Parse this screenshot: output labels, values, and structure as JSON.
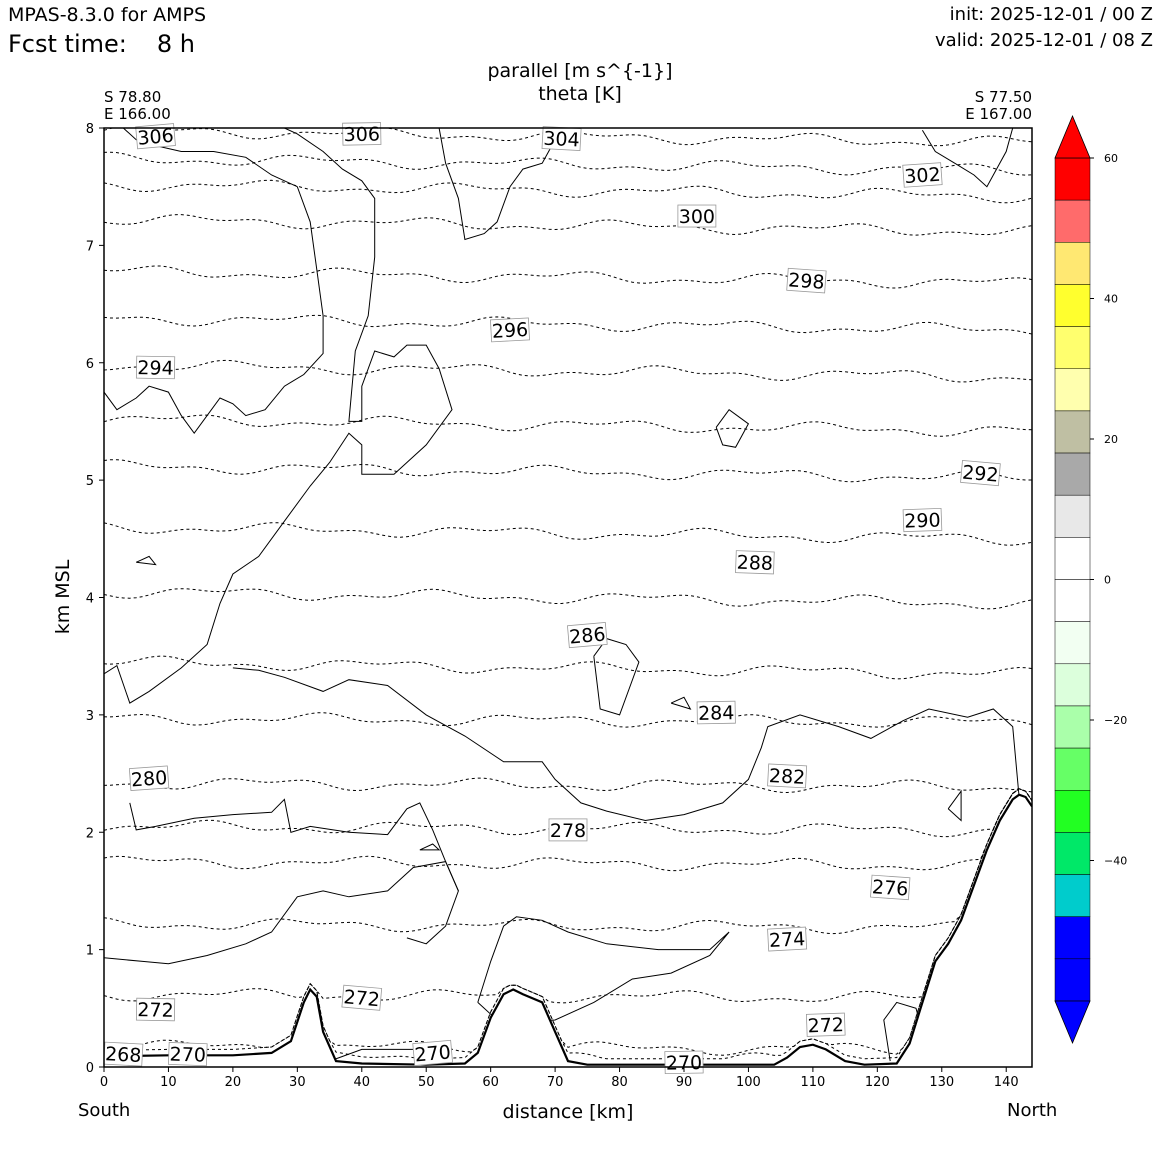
{
  "header": {
    "model": "MPAS-8.3.0 for AMPS",
    "fcst_label": "Fcst time:",
    "fcst_value": "8 h",
    "init": "init: 2025-12-01 / 00 Z",
    "valid": "valid: 2025-12-01 / 08 Z"
  },
  "titles": {
    "line1": "parallel [m s^{-1}]",
    "line2": "theta [K]"
  },
  "corners": {
    "left_lat": "S 78.80",
    "left_lon": "E 166.00",
    "right_lat": "S 77.50",
    "right_lon": "E 167.00"
  },
  "ends": {
    "south": "South",
    "north": "North"
  },
  "chart_data": {
    "type": "cross-section contour",
    "xlabel": "distance [km]",
    "ylabel": "km MSL",
    "xlim": [
      0,
      144
    ],
    "ylim": [
      0,
      8
    ],
    "xticks": [
      0,
      10,
      20,
      30,
      40,
      50,
      60,
      70,
      80,
      90,
      100,
      110,
      120,
      130,
      140
    ],
    "yticks": [
      0,
      1,
      2,
      3,
      4,
      5,
      6,
      7,
      8
    ],
    "theta_contours": [
      {
        "level": 306,
        "height_km": 7.98
      },
      {
        "level": 304,
        "height_km": 7.74
      },
      {
        "level": 302,
        "height_km": 7.52
      },
      {
        "level": 300,
        "height_km": 7.22
      },
      {
        "level": 298,
        "height_km": 6.78
      },
      {
        "level": 296,
        "height_km": 6.38
      },
      {
        "level": 294,
        "height_km": 5.98
      },
      {
        "level": 292,
        "height_km": 5.52
      },
      {
        "level": 290,
        "height_km": 5.12
      },
      {
        "level": 288,
        "height_km": 4.6
      },
      {
        "level": 286,
        "height_km": 4.05
      },
      {
        "level": 284,
        "height_km": 3.45
      },
      {
        "level": 282,
        "height_km": 2.97
      },
      {
        "level": 280,
        "height_km": 2.42
      },
      {
        "level": 278,
        "height_km": 2.05
      },
      {
        "level": 276,
        "height_km": 1.75
      },
      {
        "level": 274,
        "height_km": 1.22
      },
      {
        "level": 272,
        "height_km": 0.62
      },
      {
        "level": 270,
        "height_km": 0.18
      },
      {
        "level": 268,
        "height_km": 0.09
      }
    ],
    "contour_labels": [
      {
        "text": "306",
        "x": 8,
        "y": 7.93
      },
      {
        "text": "306",
        "x": 40,
        "y": 7.95
      },
      {
        "text": "304",
        "x": 71,
        "y": 7.91
      },
      {
        "text": "302",
        "x": 127,
        "y": 7.6
      },
      {
        "text": "300",
        "x": 92,
        "y": 7.25
      },
      {
        "text": "298",
        "x": 109,
        "y": 6.7
      },
      {
        "text": "296",
        "x": 63,
        "y": 6.28
      },
      {
        "text": "294",
        "x": 8,
        "y": 5.96
      },
      {
        "text": "292",
        "x": 136,
        "y": 5.06
      },
      {
        "text": "290",
        "x": 127,
        "y": 4.66
      },
      {
        "text": "288",
        "x": 101,
        "y": 4.3
      },
      {
        "text": "286",
        "x": 75,
        "y": 3.68
      },
      {
        "text": "284",
        "x": 95,
        "y": 3.02
      },
      {
        "text": "282",
        "x": 106,
        "y": 2.48
      },
      {
        "text": "280",
        "x": 7,
        "y": 2.46
      },
      {
        "text": "278",
        "x": 72,
        "y": 2.02
      },
      {
        "text": "276",
        "x": 122,
        "y": 1.53
      },
      {
        "text": "274",
        "x": 106,
        "y": 1.09
      },
      {
        "text": "272",
        "x": 8,
        "y": 0.49
      },
      {
        "text": "272",
        "x": 40,
        "y": 0.59
      },
      {
        "text": "272",
        "x": 112,
        "y": 0.36
      },
      {
        "text": "270",
        "x": 13,
        "y": 0.11
      },
      {
        "text": "270",
        "x": 51,
        "y": 0.12
      },
      {
        "text": "270",
        "x": 90,
        "y": 0.04
      },
      {
        "text": "268",
        "x": 3,
        "y": 0.11
      }
    ],
    "terrain": [
      [
        0,
        0.09
      ],
      [
        10,
        0.1
      ],
      [
        20,
        0.1
      ],
      [
        26,
        0.12
      ],
      [
        29,
        0.22
      ],
      [
        31,
        0.55
      ],
      [
        32,
        0.66
      ],
      [
        33,
        0.6
      ],
      [
        34,
        0.3
      ],
      [
        36,
        0.05
      ],
      [
        40,
        0.03
      ],
      [
        50,
        0.02
      ],
      [
        56,
        0.03
      ],
      [
        58,
        0.12
      ],
      [
        60,
        0.42
      ],
      [
        62,
        0.62
      ],
      [
        63.5,
        0.66
      ],
      [
        65,
        0.62
      ],
      [
        68,
        0.55
      ],
      [
        70,
        0.3
      ],
      [
        72,
        0.05
      ],
      [
        75,
        0.02
      ],
      [
        90,
        0.02
      ],
      [
        104,
        0.02
      ],
      [
        106,
        0.08
      ],
      [
        108,
        0.17
      ],
      [
        110,
        0.19
      ],
      [
        112,
        0.15
      ],
      [
        115,
        0.05
      ],
      [
        118,
        0.02
      ],
      [
        123,
        0.03
      ],
      [
        125,
        0.2
      ],
      [
        127,
        0.55
      ],
      [
        129,
        0.9
      ],
      [
        131,
        1.05
      ],
      [
        133,
        1.25
      ],
      [
        135,
        1.55
      ],
      [
        137,
        1.85
      ],
      [
        139,
        2.1
      ],
      [
        141,
        2.28
      ],
      [
        142,
        2.32
      ],
      [
        143,
        2.3
      ],
      [
        144,
        2.22
      ]
    ],
    "colorbar": {
      "ticks": [
        60,
        40,
        20,
        0,
        -20,
        -40
      ],
      "colors": [
        "#ff0000",
        "#ff6b6b",
        "#ffe872",
        "#ffff2e",
        "#ffff6e",
        "#ffffae",
        "#bfbfa3",
        "#a9a9a9",
        "#e8e8e8",
        "#ffffff",
        "#ffffff",
        "#f2fff2",
        "#dcffdc",
        "#aaffaa",
        "#66ff66",
        "#22ff22",
        "#00e868",
        "#00cccc",
        "#0000ff"
      ],
      "extend_max": "#ff0000",
      "extend_min": "#0000ff",
      "range": [
        -60,
        60
      ],
      "step": 6
    }
  }
}
